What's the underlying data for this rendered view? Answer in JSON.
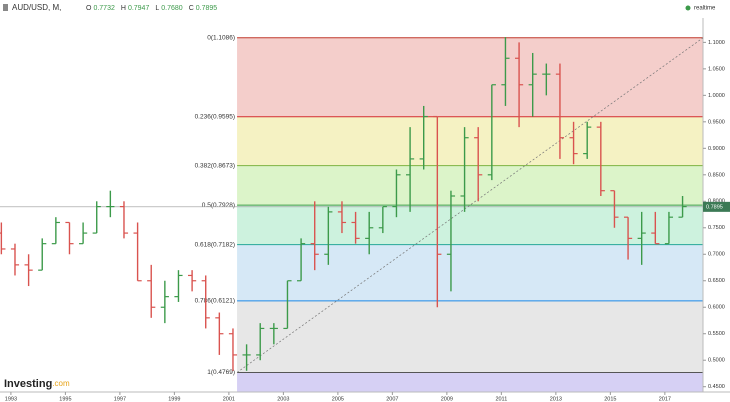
{
  "header": {
    "symbol": "AUD/USD, M,",
    "quote": [
      [
        "O",
        "0.7732"
      ],
      [
        "H",
        "0.7947"
      ],
      [
        "L",
        "0.7680"
      ],
      [
        "C",
        "0.7895"
      ]
    ],
    "status": "realtime"
  },
  "logo": {
    "brand": "Investing",
    "suffix": ".com"
  },
  "chart_data": {
    "type": "ohlc",
    "x": [
      1992.5,
      1993.0,
      1993.5,
      1994.0,
      1994.5,
      1995.0,
      1995.5,
      1996.0,
      1996.5,
      1997.0,
      1997.5,
      1998.0,
      1998.5,
      1999.0,
      1999.5,
      2000.0,
      2000.5,
      2001.0,
      2001.5,
      2002.0,
      2002.5,
      2003.0,
      2003.5,
      2004.0,
      2004.5,
      2005.0,
      2005.5,
      2006.0,
      2006.5,
      2007.0,
      2007.5,
      2008.0,
      2008.5,
      2009.0,
      2009.5,
      2010.0,
      2010.5,
      2011.0,
      2011.5,
      2012.0,
      2012.5,
      2013.0,
      2013.5,
      2014.0,
      2014.5,
      2015.0,
      2015.5,
      2016.0,
      2016.5,
      2017.0,
      2017.5
    ],
    "open": [
      0.74,
      0.71,
      0.68,
      0.67,
      0.72,
      0.76,
      0.72,
      0.74,
      0.79,
      0.79,
      0.74,
      0.65,
      0.6,
      0.62,
      0.66,
      0.65,
      0.58,
      0.55,
      0.51,
      0.51,
      0.56,
      0.56,
      0.65,
      0.72,
      0.7,
      0.78,
      0.76,
      0.73,
      0.75,
      0.79,
      0.85,
      0.88,
      0.96,
      0.7,
      0.81,
      0.92,
      0.85,
      1.02,
      1.07,
      1.02,
      1.04,
      1.04,
      0.92,
      0.89,
      0.94,
      0.82,
      0.77,
      0.73,
      0.74,
      0.72,
      0.77
    ],
    "high": [
      0.76,
      0.72,
      0.7,
      0.73,
      0.77,
      0.76,
      0.76,
      0.8,
      0.82,
      0.8,
      0.76,
      0.68,
      0.65,
      0.67,
      0.67,
      0.66,
      0.59,
      0.56,
      0.53,
      0.57,
      0.57,
      0.65,
      0.73,
      0.8,
      0.79,
      0.8,
      0.78,
      0.78,
      0.79,
      0.86,
      0.94,
      0.98,
      0.96,
      0.82,
      0.94,
      0.94,
      1.02,
      1.11,
      1.1,
      1.08,
      1.06,
      1.06,
      0.95,
      0.95,
      0.95,
      0.82,
      0.77,
      0.78,
      0.78,
      0.78,
      0.81
    ],
    "low": [
      0.7,
      0.66,
      0.64,
      0.67,
      0.72,
      0.7,
      0.72,
      0.74,
      0.77,
      0.73,
      0.65,
      0.58,
      0.57,
      0.61,
      0.63,
      0.56,
      0.51,
      0.48,
      0.48,
      0.5,
      0.53,
      0.56,
      0.65,
      0.67,
      0.68,
      0.74,
      0.72,
      0.7,
      0.74,
      0.77,
      0.78,
      0.86,
      0.6,
      0.63,
      0.78,
      0.8,
      0.84,
      0.98,
      0.94,
      0.96,
      1.0,
      0.88,
      0.87,
      0.88,
      0.81,
      0.75,
      0.69,
      0.68,
      0.72,
      0.72,
      0.77
    ],
    "close": [
      0.71,
      0.68,
      0.67,
      0.72,
      0.76,
      0.72,
      0.74,
      0.79,
      0.79,
      0.74,
      0.65,
      0.6,
      0.62,
      0.66,
      0.65,
      0.58,
      0.55,
      0.51,
      0.51,
      0.56,
      0.56,
      0.65,
      0.72,
      0.7,
      0.78,
      0.76,
      0.73,
      0.75,
      0.79,
      0.85,
      0.88,
      0.96,
      0.7,
      0.81,
      0.92,
      0.85,
      1.02,
      1.07,
      1.02,
      1.04,
      1.04,
      0.92,
      0.89,
      0.94,
      0.82,
      0.77,
      0.73,
      0.74,
      0.72,
      0.77,
      0.79
    ],
    "up_color": "#3c9a4a",
    "down_color": "#d9534f",
    "xlim": [
      1992.6,
      2018.4
    ],
    "xticks": [
      1993,
      1995,
      1997,
      1999,
      2001,
      2003,
      2005,
      2007,
      2009,
      2011,
      2013,
      2015,
      2017
    ],
    "ylim": [
      0.44,
      1.146
    ],
    "yticks": [
      {
        "value": 0.45,
        "label": "0.4500"
      },
      {
        "value": 0.5,
        "label": "0.5000"
      },
      {
        "value": 0.55,
        "label": "0.5500"
      },
      {
        "value": 0.6,
        "label": "0.6000"
      },
      {
        "value": 0.65,
        "label": "0.6500"
      },
      {
        "value": 0.7,
        "label": "0.7000"
      },
      {
        "value": 0.75,
        "label": "0.7500"
      },
      {
        "value": 0.8,
        "label": "0.8000"
      },
      {
        "value": 0.85,
        "label": "0.8500"
      },
      {
        "value": 0.9,
        "label": "0.9000"
      },
      {
        "value": 0.95,
        "label": "0.9500"
      },
      {
        "value": 1.0,
        "label": "1.0000"
      },
      {
        "value": 1.05,
        "label": "1.0500"
      },
      {
        "value": 1.1,
        "label": "1.1000"
      }
    ],
    "last": {
      "value": 0.7895,
      "label": "0.7895"
    },
    "fib_start": 2001.3,
    "levels": [
      {
        "label": "0(1.1086)",
        "value": 1.1086,
        "color": "#c0392b",
        "fill": "#f2c6c2"
      },
      {
        "label": "0.236(0.9595)",
        "value": 0.9595,
        "color": "#d32f2f",
        "fill": "#f3f0b8"
      },
      {
        "label": "0.382(0.8673)",
        "value": 0.8673,
        "color": "#7cb342",
        "fill": "#d6f2c0"
      },
      {
        "label": "0.5(0.7928)",
        "value": 0.7928,
        "color": "#43a047",
        "fill": "#c4f0d8"
      },
      {
        "label": "0.618(0.7182)",
        "value": 0.7182,
        "color": "#26a69a",
        "fill": "#cfe4f5"
      },
      {
        "label": "0.786(0.6121)",
        "value": 0.6121,
        "color": "#1e88e5",
        "fill": "#e3e3e3"
      },
      {
        "label": "1(0.4769)",
        "value": 0.4769,
        "color": "#555555",
        "fill": "#cfc8f2"
      }
    ],
    "trend": {
      "x": [
        2001.3,
        2018.4
      ],
      "y": [
        0.4769,
        1.1086
      ]
    }
  }
}
